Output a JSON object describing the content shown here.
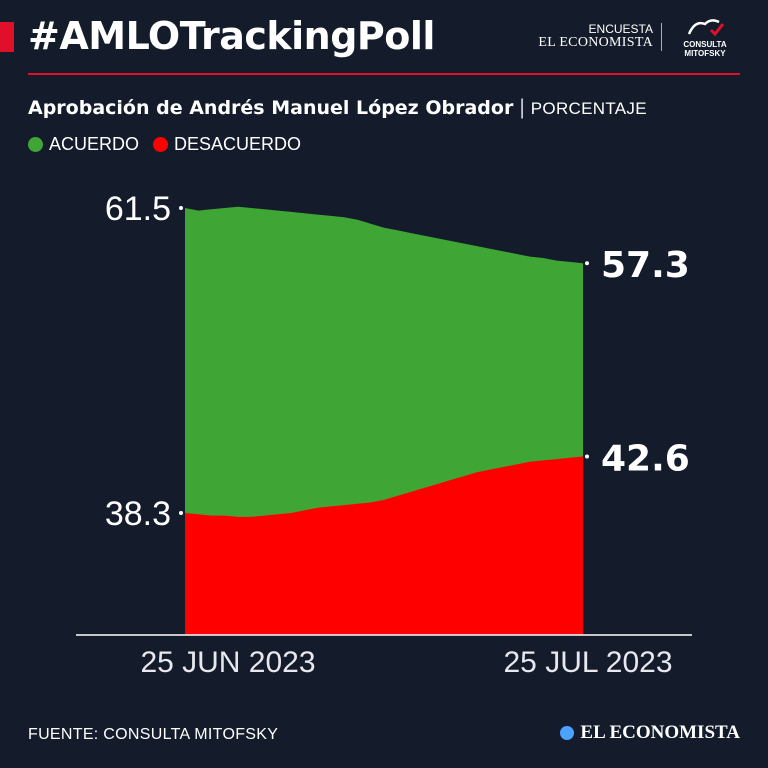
{
  "header": {
    "hashtag": "#AMLOTrackingPoll",
    "brand_small": "ENCUESTA",
    "brand_main": "EL ECONOMISTA",
    "partner_logo_text": "CONSULTA MITOFSKY"
  },
  "subtitle": {
    "title": "Aprobación de Andrés Manuel López Obrador",
    "separator": "|",
    "unit": "PORCENTAJE"
  },
  "colors": {
    "acuerdo": "#3fa535",
    "desacuerdo": "#ff0000",
    "background": "#141c2b",
    "accent": "#e0102a"
  },
  "chart_data": {
    "type": "area",
    "x": [
      "25 JUN 2023",
      "",
      "",
      "",
      "",
      "",
      "",
      "",
      "",
      "",
      "",
      "",
      "",
      "",
      "",
      "",
      "",
      "",
      "",
      "",
      "",
      "",
      "",
      "",
      "",
      "",
      "",
      "",
      "",
      "",
      "25 JUL 2023"
    ],
    "xtick_labels": [
      "25 JUN 2023",
      "25 JUL 2023"
    ],
    "series": [
      {
        "name": "ACUERDO",
        "values": [
          61.5,
          61.3,
          61.4,
          61.5,
          61.6,
          61.5,
          61.4,
          61.3,
          61.2,
          61.1,
          61.0,
          60.9,
          60.8,
          60.6,
          60.3,
          60.0,
          59.8,
          59.6,
          59.4,
          59.2,
          59.0,
          58.8,
          58.6,
          58.4,
          58.2,
          58.0,
          57.8,
          57.7,
          57.5,
          57.4,
          57.3
        ]
      },
      {
        "name": "DESACUERDO",
        "values": [
          38.3,
          38.2,
          38.1,
          38.1,
          38.0,
          38.0,
          38.1,
          38.2,
          38.3,
          38.5,
          38.7,
          38.8,
          38.9,
          39.0,
          39.1,
          39.3,
          39.6,
          39.9,
          40.2,
          40.5,
          40.8,
          41.1,
          41.4,
          41.6,
          41.8,
          42.0,
          42.2,
          42.3,
          42.4,
          42.5,
          42.6
        ]
      }
    ],
    "value_labels": {
      "acuerdo_start": "61.5",
      "desacuerdo_start": "38.3",
      "acuerdo_end": "57.3",
      "desacuerdo_end": "42.6"
    },
    "ylim": [
      30,
      63
    ],
    "grid": false,
    "legend": "top-left"
  },
  "footer": {
    "source": "FUENTE: CONSULTA MITOFSKY",
    "logo": "EL ECONOMISTA"
  }
}
